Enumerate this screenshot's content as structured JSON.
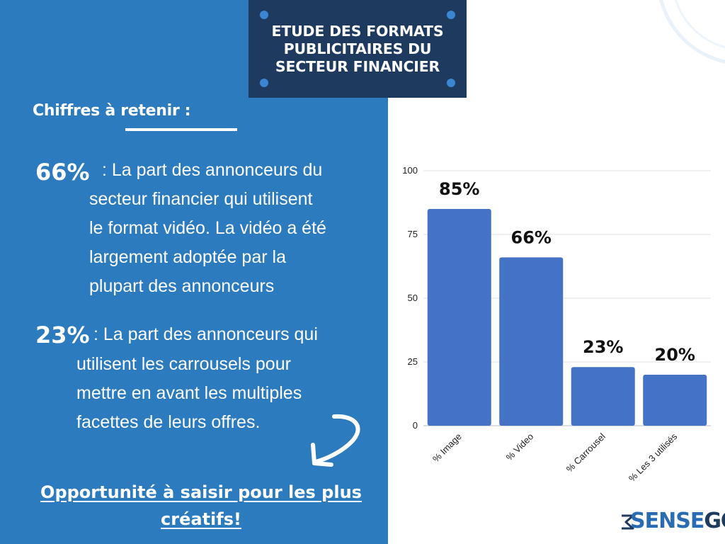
{
  "banner": {
    "title_lines": [
      "ETUDE DES FORMATS",
      "PUBLICITAIRES DU",
      "SECTEUR FINANCIER"
    ]
  },
  "key_figures": {
    "heading": "Chiffres à retenir :",
    "items": [
      {
        "value": "66%",
        "lines": [
          ": La part des annonceurs du",
          "secteur financier qui utilisent",
          "le format vidéo. La vidéo a été",
          "largement adoptée par la",
          "plupart des annonceurs"
        ]
      },
      {
        "value": "23%",
        "lines": [
          ": La part des annonceurs qui",
          "utilisent les carrousels pour",
          "mettre en avant les multiples",
          "facettes de leurs offres."
        ]
      }
    ]
  },
  "cta": {
    "lines": [
      "Opportunité à saisir pour les plus",
      "créatifs!"
    ]
  },
  "logo": {
    "part1": "SENSE",
    "part2": "GO"
  },
  "colors": {
    "panel": "#2c7bbf",
    "banner": "#1e3a5f",
    "bar": "#4472c4",
    "grid": "#e0e0e0"
  },
  "chart_data": {
    "type": "bar",
    "categories": [
      "% Image",
      "% Video",
      "% Carrousel",
      "% Les 3 utilisés"
    ],
    "values": [
      85,
      66,
      23,
      20
    ],
    "data_labels": [
      "85%",
      "66%",
      "23%",
      "20%"
    ],
    "title": "",
    "xlabel": "",
    "ylabel": "",
    "ylim": [
      0,
      100
    ],
    "yticks": [
      0,
      25,
      50,
      75,
      100
    ],
    "grid": true,
    "legend": "none"
  }
}
